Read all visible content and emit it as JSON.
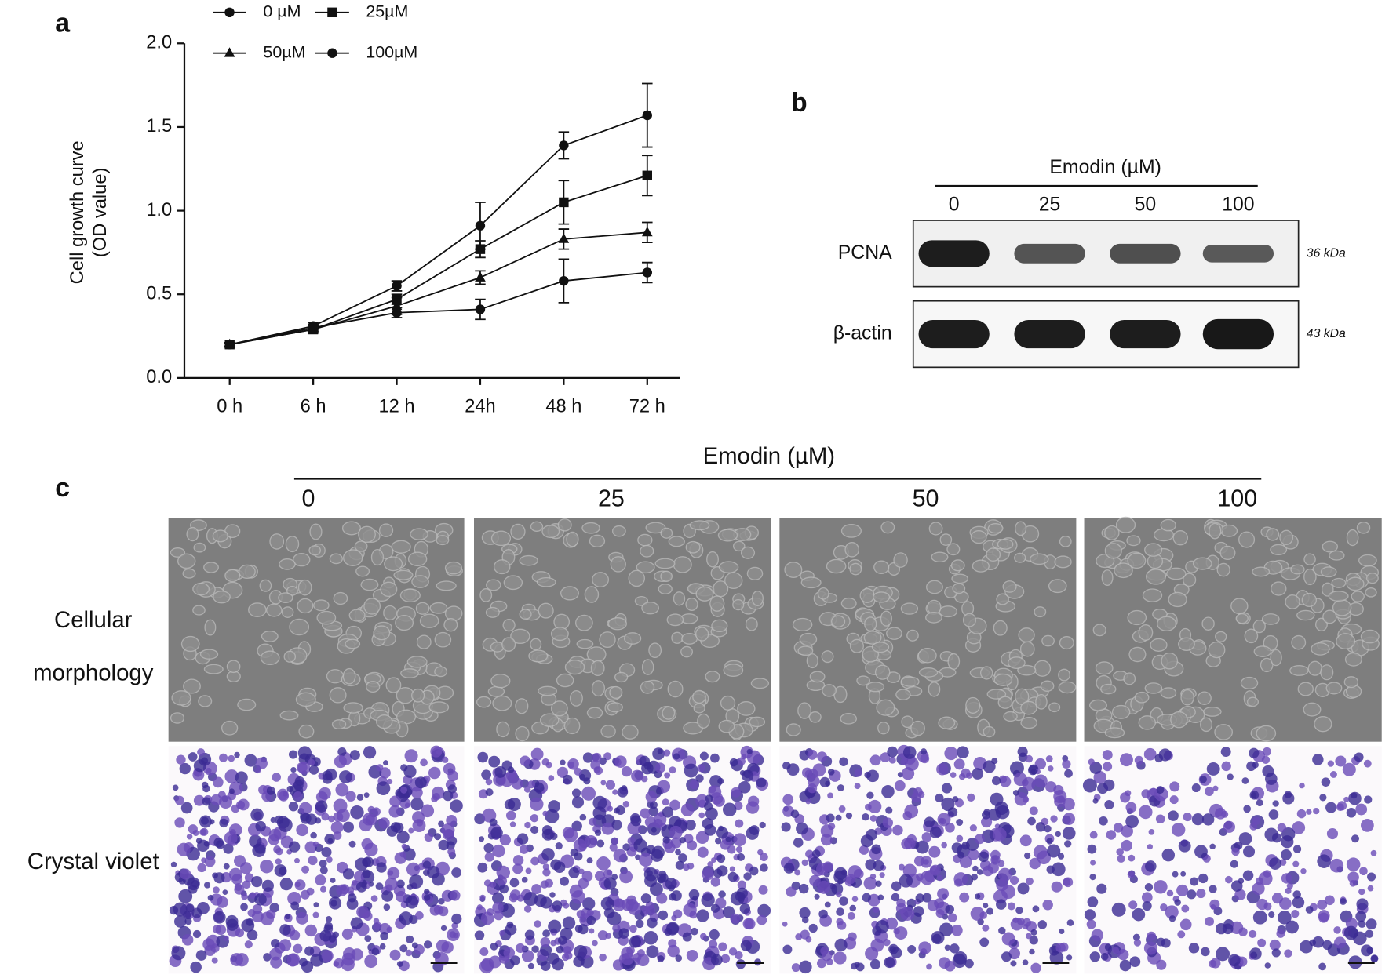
{
  "chart_data": {
    "type": "line",
    "panel_label": "a",
    "y_label": [
      "Cell growth curve",
      "(OD value)"
    ],
    "categories": [
      "0 h",
      "6 h",
      "12 h",
      "24h",
      "48 h",
      "72 h"
    ],
    "ylim": [
      0,
      2
    ],
    "yticks": [
      {
        "value": 0,
        "label": "0.0"
      },
      {
        "value": 0.5,
        "label": "0.5"
      },
      {
        "value": 1,
        "label": "1.0"
      },
      {
        "value": 1.5,
        "label": "1.5"
      },
      {
        "value": 2,
        "label": "2.0"
      }
    ],
    "grid": false,
    "series": [
      {
        "name": "0 µM",
        "color": "#111111",
        "marker": "circle",
        "values": [
          0.2,
          0.31,
          0.55,
          0.91,
          1.39,
          1.57
        ],
        "errors": [
          0.01,
          0.02,
          0.03,
          0.14,
          0.08,
          0.19
        ]
      },
      {
        "name": "25µM",
        "color": "#111111",
        "marker": "square",
        "values": [
          0.2,
          0.29,
          0.47,
          0.77,
          1.05,
          1.21
        ],
        "errors": [
          0.01,
          0.02,
          0.03,
          0.05,
          0.13,
          0.12
        ]
      },
      {
        "name": "50µM",
        "color": "#111111",
        "marker": "triangle",
        "values": [
          0.2,
          0.29,
          0.43,
          0.6,
          0.83,
          0.87
        ],
        "errors": [
          0.01,
          0.02,
          0.05,
          0.04,
          0.06,
          0.06
        ]
      },
      {
        "name": "100µM",
        "color": "#111111",
        "marker": "circle",
        "values": [
          0.2,
          0.3,
          0.39,
          0.41,
          0.58,
          0.63
        ],
        "errors": [
          0.01,
          0.02,
          0.03,
          0.06,
          0.13,
          0.06
        ]
      }
    ]
  },
  "blot": {
    "panel_label": "b",
    "header": "Emodin (µM)",
    "lanes": [
      "0",
      "25",
      "50",
      "100"
    ],
    "rows": [
      {
        "protein": "PCNA",
        "size": "36 kDa"
      },
      {
        "protein": "β-actin",
        "size": "43 kDa"
      }
    ]
  },
  "micrographs": {
    "panel_label": "c",
    "header": "Emodin (µM)",
    "lanes": [
      "0",
      "25",
      "50",
      "100"
    ],
    "rows": [
      [
        "Cellular",
        "morphology"
      ],
      [
        "Crystal violet"
      ]
    ]
  }
}
